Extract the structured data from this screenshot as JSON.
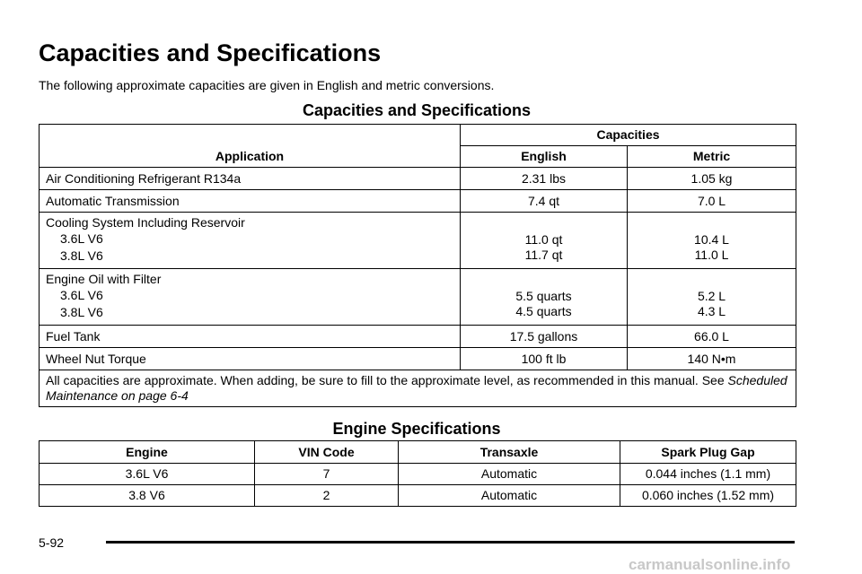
{
  "title": "Capacities and Specifications",
  "intro": "The following approximate capacities are given in English and metric conversions.",
  "capacities_table": {
    "title": "Capacities and Specifications",
    "header": {
      "application": "Application",
      "group": "Capacities",
      "english": "English",
      "metric": "Metric"
    },
    "rows": [
      {
        "application": "Air Conditioning Refrigerant R134a",
        "english": "2.31 lbs",
        "metric": "1.05 kg"
      },
      {
        "application": "Automatic Transmission",
        "english": "7.4 qt",
        "metric": "7.0 L"
      },
      {
        "application": "Cooling System Including Reservoir",
        "sub": [
          {
            "label": "3.6L V6",
            "english": "11.0 qt",
            "metric": "10.4 L"
          },
          {
            "label": "3.8L V6",
            "english": "11.7 qt",
            "metric": "11.0 L"
          }
        ]
      },
      {
        "application": "Engine Oil with Filter",
        "sub": [
          {
            "label": "3.6L V6",
            "english": "5.5 quarts",
            "metric": "5.2 L"
          },
          {
            "label": "3.8L V6",
            "english": "4.5 quarts",
            "metric": "4.3 L"
          }
        ]
      },
      {
        "application": "Fuel Tank",
        "english": "17.5 gallons",
        "metric": "66.0 L"
      },
      {
        "application": "Wheel Nut Torque",
        "english": "100 ft lb",
        "metric": "140 N•m"
      }
    ],
    "note": {
      "text": "All capacities are approximate. When adding, be sure to fill to the approximate level, as recommended in this manual. See ",
      "link": "Scheduled Maintenance on page 6-4"
    }
  },
  "engine_table": {
    "title": "Engine Specifications",
    "columns": [
      "Engine",
      "VIN Code",
      "Transaxle",
      "Spark Plug Gap"
    ],
    "rows": [
      [
        "3.6L V6",
        "7",
        "Automatic",
        "0.044 inches (1.1 mm)"
      ],
      [
        "3.8 V6",
        "2",
        "Automatic",
        "0.060 inches (1.52 mm)"
      ]
    ]
  },
  "page_number": "5-92",
  "watermark": "carmanualsonline.info"
}
